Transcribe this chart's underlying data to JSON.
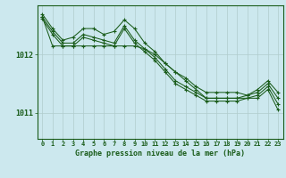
{
  "title": "Graphe pression niveau de la mer (hPa)",
  "bg_color": "#cce8ee",
  "grid_color": "#b0cccc",
  "line_color": "#1a5c1a",
  "xlim": [
    -0.5,
    23.5
  ],
  "ylim": [
    1010.55,
    1012.85
  ],
  "yticks": [
    1011,
    1012
  ],
  "xticks": [
    0,
    1,
    2,
    3,
    4,
    5,
    6,
    7,
    8,
    9,
    10,
    11,
    12,
    13,
    14,
    15,
    16,
    17,
    18,
    19,
    20,
    21,
    22,
    23
  ],
  "lines": [
    [
      1012.7,
      1012.45,
      1012.25,
      1012.3,
      1012.45,
      1012.45,
      1012.35,
      1012.4,
      1012.6,
      1012.45,
      1012.2,
      1012.05,
      1011.85,
      1011.7,
      1011.6,
      1011.45,
      1011.35,
      1011.35,
      1011.35,
      1011.35,
      1011.3,
      1011.4,
      1011.55,
      1011.35
    ],
    [
      1012.65,
      1012.4,
      1012.2,
      1012.2,
      1012.35,
      1012.3,
      1012.25,
      1012.2,
      1012.5,
      1012.25,
      1012.1,
      1011.95,
      1011.75,
      1011.55,
      1011.45,
      1011.35,
      1011.25,
      1011.25,
      1011.25,
      1011.25,
      1011.3,
      1011.35,
      1011.5,
      1011.25
    ],
    [
      1012.62,
      1012.35,
      1012.15,
      1012.15,
      1012.3,
      1012.25,
      1012.2,
      1012.15,
      1012.45,
      1012.2,
      1012.05,
      1011.9,
      1011.7,
      1011.5,
      1011.4,
      1011.3,
      1011.2,
      1011.2,
      1011.2,
      1011.2,
      1011.25,
      1011.3,
      1011.45,
      1011.15
    ],
    [
      1012.65,
      1012.15,
      1012.15,
      1012.15,
      1012.15,
      1012.15,
      1012.15,
      1012.15,
      1012.15,
      1012.15,
      1012.1,
      1012.0,
      1011.85,
      1011.7,
      1011.55,
      1011.4,
      1011.25,
      1011.25,
      1011.25,
      1011.25,
      1011.25,
      1011.25,
      1011.4,
      1011.05
    ]
  ]
}
